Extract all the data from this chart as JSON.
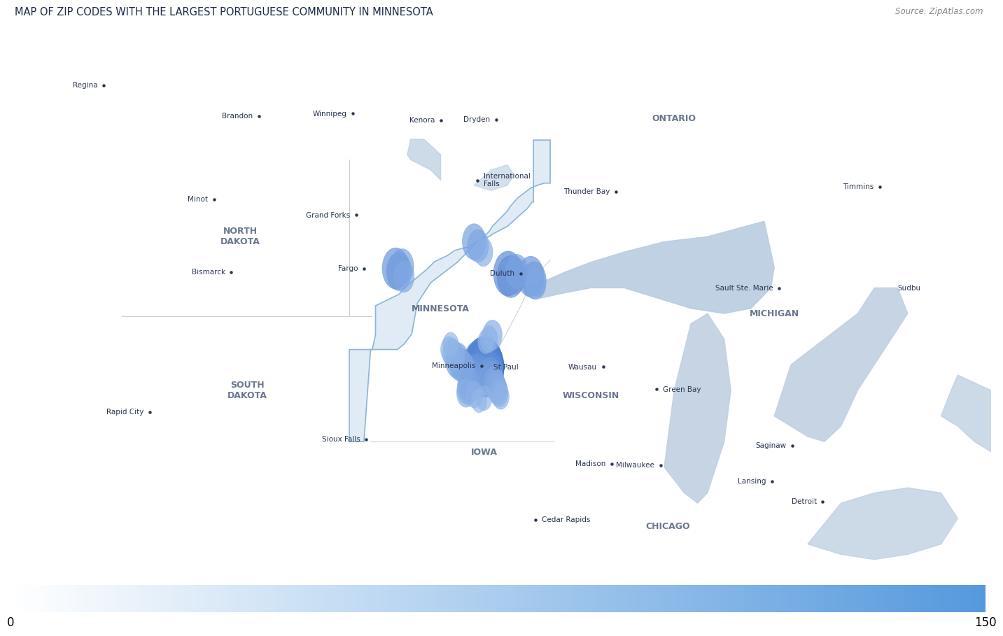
{
  "title": "MAP OF ZIP CODES WITH THE LARGEST PORTUGUESE COMMUNITY IN MINNESOTA",
  "source": "Source: ZipAtlas.com",
  "colorbar_min": 0,
  "colorbar_max": 150,
  "page_bg": "#ffffff",
  "land_bg": "#f5f5f5",
  "water_color": "#c8d8e8",
  "lake_superior_color": "#b8cce0",
  "great_lakes_color": "#c0d0e2",
  "mn_fill": "#dce8f5",
  "mn_border": "#7aaad0",
  "mn_fill_alpha": 0.85,
  "dot_color_low": "#a8c8f0",
  "dot_color_high": "#1a55c0",
  "colorbar_color_start": "#ffffff",
  "colorbar_color_end": "#5599dd",
  "cities": [
    {
      "name": "International\nFalls",
      "lon": -93.4,
      "lat": 48.6,
      "dot": true
    },
    {
      "name": "Duluth",
      "lon": -92.1,
      "lat": 46.78,
      "dot": true,
      "anchor": "right"
    },
    {
      "name": "MINNESOTA",
      "lon": -94.5,
      "lat": 46.1,
      "dot": false,
      "state": true
    },
    {
      "name": "Minneapolis",
      "lon": -93.27,
      "lat": 44.98,
      "dot": true,
      "anchor": "right"
    },
    {
      "name": "St Paul",
      "lon": -93.09,
      "lat": 44.95,
      "dot": false,
      "anchor": "left"
    },
    {
      "name": "Fargo",
      "lon": -96.79,
      "lat": 46.88,
      "dot": true,
      "anchor": "right"
    },
    {
      "name": "Grand Forks",
      "lon": -97.03,
      "lat": 47.92,
      "dot": true,
      "anchor": "right"
    },
    {
      "name": "Winnipeg",
      "lon": -97.14,
      "lat": 49.9,
      "dot": true,
      "anchor": "right"
    },
    {
      "name": "Brandon",
      "lon": -99.95,
      "lat": 49.85,
      "dot": true,
      "anchor": "right"
    },
    {
      "name": "Kenora",
      "lon": -94.49,
      "lat": 49.77,
      "dot": true,
      "anchor": "right"
    },
    {
      "name": "Dryden",
      "lon": -92.84,
      "lat": 49.78,
      "dot": true,
      "anchor": "right"
    },
    {
      "name": "Thunder Bay",
      "lon": -89.25,
      "lat": 48.38,
      "dot": true,
      "anchor": "right"
    },
    {
      "name": "Bismarck",
      "lon": -100.78,
      "lat": 46.81,
      "dot": true,
      "anchor": "right"
    },
    {
      "name": "Minot",
      "lon": -101.29,
      "lat": 48.23,
      "dot": true,
      "anchor": "right"
    },
    {
      "name": "Regina",
      "lon": -104.61,
      "lat": 50.45,
      "dot": true,
      "anchor": "right"
    },
    {
      "name": "NORTH\nDAKOTA",
      "lon": -100.5,
      "lat": 47.5,
      "dot": false,
      "state": true
    },
    {
      "name": "SOUTH\nDAKOTA",
      "lon": -100.3,
      "lat": 44.5,
      "dot": false,
      "state": true
    },
    {
      "name": "WISCONSIN",
      "lon": -90.0,
      "lat": 44.4,
      "dot": false,
      "state": true
    },
    {
      "name": "ONTARIO",
      "lon": -87.5,
      "lat": 49.8,
      "dot": false,
      "state": true
    },
    {
      "name": "IOWA",
      "lon": -93.2,
      "lat": 43.3,
      "dot": false,
      "state": true
    },
    {
      "name": "MICHIGAN",
      "lon": -84.5,
      "lat": 46.0,
      "dot": false,
      "state": true
    },
    {
      "name": "Saginaw",
      "lon": -83.95,
      "lat": 43.42,
      "dot": true,
      "anchor": "right"
    },
    {
      "name": "Rapid City",
      "lon": -103.22,
      "lat": 44.08,
      "dot": true,
      "anchor": "right"
    },
    {
      "name": "Sioux Falls",
      "lon": -96.73,
      "lat": 43.55,
      "dot": true,
      "anchor": "right"
    },
    {
      "name": "Wausau",
      "lon": -89.63,
      "lat": 44.96,
      "dot": true,
      "anchor": "right"
    },
    {
      "name": "Green Bay",
      "lon": -88.02,
      "lat": 44.52,
      "dot": true,
      "anchor": "left"
    },
    {
      "name": "Madison",
      "lon": -89.38,
      "lat": 43.07,
      "dot": true,
      "anchor": "right"
    },
    {
      "name": "Milwaukee",
      "lon": -87.91,
      "lat": 43.04,
      "dot": true,
      "anchor": "right"
    },
    {
      "name": "Lansing",
      "lon": -84.56,
      "lat": 42.73,
      "dot": true,
      "anchor": "right"
    },
    {
      "name": "Detroit",
      "lon": -83.05,
      "lat": 42.33,
      "dot": true,
      "anchor": "right"
    },
    {
      "name": "Sault Ste. Marie",
      "lon": -84.35,
      "lat": 46.49,
      "dot": true,
      "anchor": "right"
    },
    {
      "name": "Sudbu",
      "lon": -80.99,
      "lat": 46.49,
      "dot": false,
      "anchor": "left"
    },
    {
      "name": "Timmins",
      "lon": -81.33,
      "lat": 48.47,
      "dot": true,
      "anchor": "right"
    },
    {
      "name": "Cedar Rapids",
      "lon": -91.66,
      "lat": 41.98,
      "dot": true,
      "anchor": "left"
    },
    {
      "name": "CHICAGO",
      "lon": -87.68,
      "lat": 41.85,
      "dot": true,
      "state": true
    }
  ],
  "bubbles": [
    {
      "lon": -93.2,
      "lat": 44.97,
      "value": 150
    },
    {
      "lon": -93.17,
      "lat": 44.94,
      "value": 145
    },
    {
      "lon": -93.23,
      "lat": 44.93,
      "value": 140
    },
    {
      "lon": -93.15,
      "lat": 44.96,
      "value": 130
    },
    {
      "lon": -93.26,
      "lat": 44.98,
      "value": 120
    },
    {
      "lon": -93.13,
      "lat": 44.91,
      "value": 115
    },
    {
      "lon": -93.29,
      "lat": 44.9,
      "value": 110
    },
    {
      "lon": -93.11,
      "lat": 44.99,
      "value": 105
    },
    {
      "lon": -93.32,
      "lat": 45.0,
      "value": 100
    },
    {
      "lon": -93.09,
      "lat": 44.88,
      "value": 95
    },
    {
      "lon": -93.35,
      "lat": 44.87,
      "value": 90
    },
    {
      "lon": -93.07,
      "lat": 45.03,
      "value": 85
    },
    {
      "lon": -93.38,
      "lat": 45.05,
      "value": 80
    },
    {
      "lon": -93.05,
      "lat": 44.85,
      "value": 75
    },
    {
      "lon": -93.41,
      "lat": 44.82,
      "value": 70
    },
    {
      "lon": -93.47,
      "lat": 44.78,
      "value": 65
    },
    {
      "lon": -93.03,
      "lat": 44.78,
      "value": 60
    },
    {
      "lon": -93.53,
      "lat": 44.72,
      "value": 58
    },
    {
      "lon": -92.98,
      "lat": 44.72,
      "value": 55
    },
    {
      "lon": -93.58,
      "lat": 44.65,
      "value": 52
    },
    {
      "lon": -93.64,
      "lat": 44.6,
      "value": 48
    },
    {
      "lon": -93.69,
      "lat": 44.54,
      "value": 45
    },
    {
      "lon": -92.9,
      "lat": 44.65,
      "value": 43
    },
    {
      "lon": -92.85,
      "lat": 44.58,
      "value": 40
    },
    {
      "lon": -92.8,
      "lat": 44.52,
      "value": 38
    },
    {
      "lon": -93.74,
      "lat": 44.45,
      "value": 35
    },
    {
      "lon": -92.75,
      "lat": 44.45,
      "value": 33
    },
    {
      "lon": -93.5,
      "lat": 44.42,
      "value": 30
    },
    {
      "lon": -92.7,
      "lat": 44.38,
      "value": 28
    },
    {
      "lon": -93.2,
      "lat": 44.35,
      "value": 26
    },
    {
      "lon": -93.35,
      "lat": 44.3,
      "value": 24
    },
    {
      "lon": -94.0,
      "lat": 45.08,
      "value": 55
    },
    {
      "lon": -93.9,
      "lat": 45.0,
      "value": 48
    },
    {
      "lon": -93.8,
      "lat": 44.95,
      "value": 42
    },
    {
      "lon": -94.15,
      "lat": 45.22,
      "value": 38
    },
    {
      "lon": -94.05,
      "lat": 45.15,
      "value": 32
    },
    {
      "lon": -94.25,
      "lat": 45.3,
      "value": 28
    },
    {
      "lon": -94.2,
      "lat": 45.4,
      "value": 24
    },
    {
      "lon": -92.48,
      "lat": 46.78,
      "value": 85
    },
    {
      "lon": -92.4,
      "lat": 46.72,
      "value": 75
    },
    {
      "lon": -92.3,
      "lat": 46.75,
      "value": 60
    },
    {
      "lon": -92.22,
      "lat": 46.82,
      "value": 50
    },
    {
      "lon": -91.8,
      "lat": 46.72,
      "value": 70
    },
    {
      "lon": -91.7,
      "lat": 46.65,
      "value": 58
    },
    {
      "lon": -91.65,
      "lat": 46.58,
      "value": 42
    },
    {
      "lon": -93.5,
      "lat": 47.4,
      "value": 55
    },
    {
      "lon": -93.38,
      "lat": 47.32,
      "value": 45
    },
    {
      "lon": -93.22,
      "lat": 47.2,
      "value": 35
    },
    {
      "lon": -95.85,
      "lat": 46.88,
      "value": 72
    },
    {
      "lon": -95.75,
      "lat": 46.82,
      "value": 62
    },
    {
      "lon": -95.65,
      "lat": 46.92,
      "value": 52
    },
    {
      "lon": -95.6,
      "lat": 46.72,
      "value": 42
    },
    {
      "lon": -92.95,
      "lat": 45.58,
      "value": 38
    },
    {
      "lon": -93.05,
      "lat": 45.5,
      "value": 30
    },
    {
      "lon": -93.15,
      "lat": 45.45,
      "value": 24
    }
  ],
  "mn_lon": [
    -97.239,
    -97.239,
    -97.239,
    -97.239,
    -96.854,
    -96.7,
    -96.6,
    -96.55,
    -96.453,
    -96.453,
    -96.453,
    -95.746,
    -95.5,
    -95.186,
    -94.9,
    -94.688,
    -94.3,
    -94.066,
    -93.8,
    -93.637,
    -93.375,
    -93.05,
    -92.904,
    -92.5,
    -92.288,
    -91.9,
    -91.76,
    -91.718,
    -91.718,
    -91.6,
    -91.399,
    -91.217,
    -91.217,
    -91.4,
    -91.6,
    -91.8,
    -92.0,
    -92.2,
    -92.4,
    -92.53,
    -92.65,
    -92.8,
    -92.95,
    -93.05,
    -93.2,
    -93.4,
    -93.55,
    -93.7,
    -93.85,
    -94.0,
    -94.2,
    -94.4,
    -94.6,
    -94.8,
    -94.9,
    -95.0,
    -95.2,
    -95.368,
    -95.6,
    -95.8,
    -96.07,
    -96.2,
    -96.401,
    -96.6,
    -96.8,
    -97.0,
    -97.239
  ],
  "mn_lat": [
    43.5,
    44.0,
    44.5,
    45.297,
    45.297,
    45.297,
    45.297,
    45.297,
    45.59,
    45.9,
    46.151,
    46.376,
    46.55,
    46.716,
    46.87,
    47.011,
    47.13,
    47.234,
    47.28,
    47.3,
    47.423,
    47.5,
    47.563,
    47.7,
    47.824,
    48.05,
    48.177,
    48.177,
    49.384,
    49.384,
    49.384,
    49.384,
    48.543,
    48.543,
    48.5,
    48.45,
    48.35,
    48.25,
    48.1,
    47.98,
    47.9,
    47.8,
    47.7,
    47.6,
    47.5,
    47.4,
    47.3,
    47.2,
    47.1,
    47.0,
    46.9,
    46.8,
    46.7,
    46.6,
    46.5,
    46.4,
    46.2,
    45.6,
    45.4,
    45.297,
    45.297,
    45.297,
    45.297,
    45.297,
    43.5,
    43.5,
    43.5
  ]
}
